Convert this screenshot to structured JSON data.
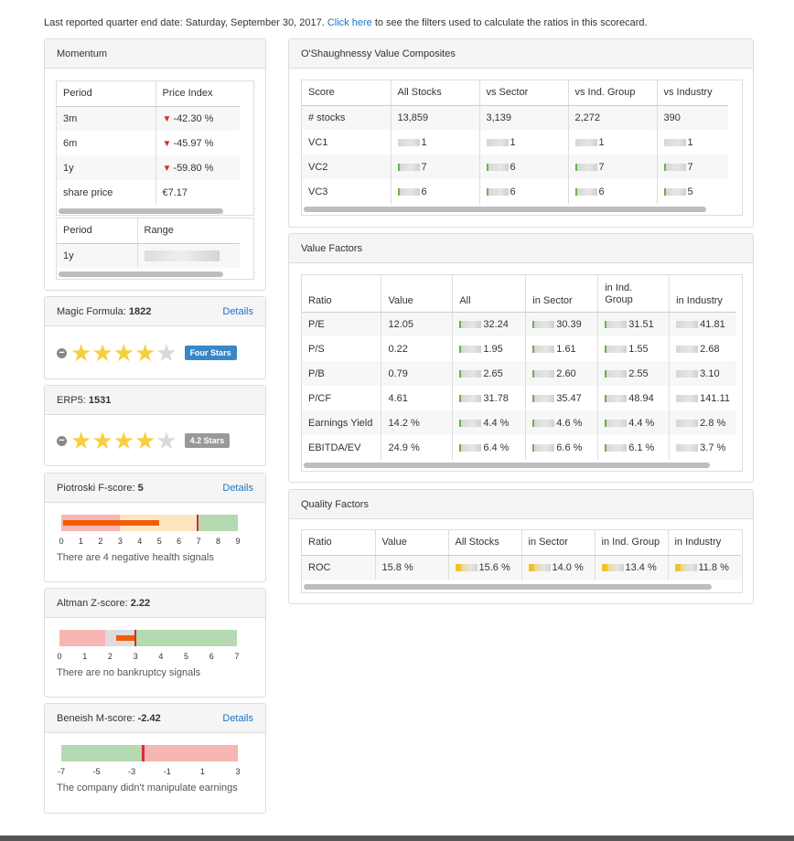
{
  "header": {
    "text": "Last reported quarter end date: Saturday, September 30, 2017.",
    "link": "Click here",
    "text_after": "to see the filters used to calculate the ratios in this scorecard."
  },
  "momentum": {
    "title": "Momentum",
    "cols": [
      "Period",
      "Price Index"
    ],
    "rows": [
      {
        "period": "3m",
        "value": "-42.30 %",
        "down": true
      },
      {
        "period": "6m",
        "value": "-45.97 %",
        "down": true
      },
      {
        "period": "1y",
        "value": "-59.80 %",
        "down": true
      },
      {
        "period": "share price",
        "value": "€7.17",
        "down": false
      }
    ],
    "range_cols": [
      "Period",
      "Range"
    ],
    "range_rows": [
      {
        "period": "1y"
      }
    ]
  },
  "magic_formula": {
    "label": "Magic Formula:",
    "value": "1822",
    "details": "Details",
    "stars": 4,
    "badge": "Four Stars",
    "badge_color": "#3a87c8"
  },
  "erp5": {
    "label": "ERP5:",
    "value": "1531",
    "stars": 4,
    "badge": "4.2 Stars",
    "badge_color": "#999999"
  },
  "piotroski": {
    "label": "Piotroski F-score:",
    "value": "5",
    "details": "Details",
    "ticks": [
      "0",
      "1",
      "2",
      "3",
      "4",
      "5",
      "6",
      "7",
      "8",
      "9"
    ],
    "note": "There are 4 negative health signals",
    "score": 5,
    "min": 0,
    "max": 9
  },
  "altman": {
    "label": "Altman Z-score:",
    "value": "2.22",
    "ticks": [
      "0",
      "1",
      "2",
      "3",
      "4",
      "5",
      "6",
      "7"
    ],
    "note": "There are no bankruptcy signals",
    "score": 2.22,
    "min": 0,
    "max": 7
  },
  "beneish": {
    "label": "Beneish M-score:",
    "value": "-2.42",
    "details": "Details",
    "ticks": [
      "-7",
      "-5",
      "-3",
      "-1",
      "1",
      "3"
    ],
    "note": "The company didn't manipulate earnings",
    "score": -2.42,
    "min": -7,
    "max": 3
  },
  "vc": {
    "title": "O'Shaughnessy Value Composites",
    "cols": [
      "Score",
      "All Stocks",
      "vs Sector",
      "vs Ind. Group",
      "vs Industry"
    ],
    "stocks_row": {
      "label": "# stocks",
      "values": [
        "13,859",
        "3,139",
        "2,272",
        "390"
      ]
    },
    "rows": [
      {
        "label": "VC1",
        "values": [
          "1",
          "1",
          "1",
          "1"
        ]
      },
      {
        "label": "VC2",
        "values": [
          "7",
          "6",
          "7",
          "7"
        ]
      },
      {
        "label": "VC3",
        "values": [
          "6",
          "6",
          "6",
          "5"
        ]
      }
    ]
  },
  "value_factors": {
    "title": "Value Factors",
    "cols": [
      "Ratio",
      "Value",
      "All",
      "in Sector",
      "in Ind. Group",
      "in Industry"
    ],
    "rows": [
      {
        "label": "P/E",
        "value": "12.05",
        "values": [
          "32.24",
          "30.39",
          "31.51",
          "41.81"
        ]
      },
      {
        "label": "P/S",
        "value": "0.22",
        "values": [
          "1.95",
          "1.61",
          "1.55",
          "2.68"
        ]
      },
      {
        "label": "P/B",
        "value": "0.79",
        "values": [
          "2.65",
          "2.60",
          "2.55",
          "3.10"
        ]
      },
      {
        "label": "P/CF",
        "value": "4.61",
        "values": [
          "31.78",
          "35.47",
          "48.94",
          "141.11"
        ]
      },
      {
        "label": "Earnings Yield",
        "value": "14.2 %",
        "values": [
          "4.4 %",
          "4.6 %",
          "4.4 %",
          "2.8 %"
        ]
      },
      {
        "label": "EBITDA/EV",
        "value": "24.9 %",
        "values": [
          "6.4 %",
          "6.6 %",
          "6.1 %",
          "3.7 %"
        ]
      }
    ]
  },
  "quality": {
    "title": "Quality Factors",
    "cols": [
      "Ratio",
      "Value",
      "All Stocks",
      "in Sector",
      "in Ind. Group",
      "in Industry"
    ],
    "rows": [
      {
        "label": "ROC",
        "value": "15.8 %",
        "values": [
          "15.6 %",
          "14.0 %",
          "13.4 %",
          "11.8 %"
        ]
      }
    ]
  },
  "colors": {
    "green": "#b5d9b0",
    "red": "#f6b6b2",
    "amber": "#fde5c0",
    "grey": "#dddddd",
    "orange": "#f25c05",
    "marker": "#d32f2f"
  }
}
